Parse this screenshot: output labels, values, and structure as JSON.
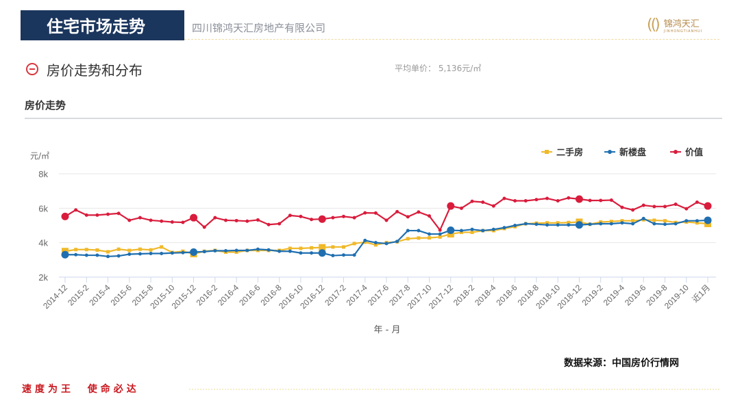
{
  "header": {
    "title": "住宅市场走势",
    "company": "四川锦鸿天汇房地产有限公司",
    "logo_cn": "锦鸿天汇",
    "logo_en": "JINHONGTIANHUI"
  },
  "section": {
    "title": "房价走势和分布",
    "avg_label": "平均单价：",
    "avg_value": "5,136元/㎡",
    "sub_title": "房价走势"
  },
  "footer": {
    "source": "数据来源：中国房价行情网",
    "slogan": "速度为王  使命必达"
  },
  "colors": {
    "second_hand": "#f0b92a",
    "new_home": "#1f6fb0",
    "value": "#d91c3c",
    "navy": "#1b365d"
  },
  "chart_data": {
    "type": "line",
    "ylabel": "元/㎡",
    "xlabel": "年 - 月",
    "ylim": [
      2000,
      8000
    ],
    "yticks": [
      {
        "v": 2000,
        "label": "2k"
      },
      {
        "v": 4000,
        "label": "4k"
      },
      {
        "v": 6000,
        "label": "6k"
      },
      {
        "v": 8000,
        "label": "8k"
      }
    ],
    "x": [
      "2014-12",
      "2015-1",
      "2015-2",
      "2015-3",
      "2015-4",
      "2015-5",
      "2015-6",
      "2015-7",
      "2015-8",
      "2015-9",
      "2015-10",
      "2015-11",
      "2015-12",
      "2016-1",
      "2016-2",
      "2016-3",
      "2016-4",
      "2016-5",
      "2016-6",
      "2016-7",
      "2016-8",
      "2016-9",
      "2016-10",
      "2016-11",
      "2016-12",
      "2017-1",
      "2017-2",
      "2017-3",
      "2017-4",
      "2017-5",
      "2017-6",
      "2017-7",
      "2017-8",
      "2017-9",
      "2017-10",
      "2017-11",
      "2017-12",
      "2018-1",
      "2018-2",
      "2018-3",
      "2018-4",
      "2018-5",
      "2018-6",
      "2018-7",
      "2018-8",
      "2018-9",
      "2018-10",
      "2018-11",
      "2018-12",
      "2019-1",
      "2019-2",
      "2019-3",
      "2019-4",
      "2019-5",
      "2019-6",
      "2019-7",
      "2019-8",
      "2019-9",
      "2019-10",
      "2019-11",
      "近1月"
    ],
    "grid": true,
    "legend": "top-right",
    "series": [
      {
        "name": "二手房",
        "color": "#f0b92a",
        "values": [
          3500,
          3600,
          3600,
          3570,
          3470,
          3620,
          3550,
          3620,
          3580,
          3750,
          3430,
          3500,
          3350,
          3500,
          3550,
          3450,
          3450,
          3550,
          3550,
          3550,
          3550,
          3670,
          3670,
          3700,
          3720,
          3750,
          3750,
          3950,
          4030,
          3870,
          4000,
          4050,
          4230,
          4270,
          4280,
          4330,
          4500,
          4600,
          4600,
          4700,
          4700,
          4820,
          4930,
          5100,
          5130,
          5150,
          5150,
          5170,
          5200,
          5070,
          5200,
          5230,
          5270,
          5270,
          5330,
          5300,
          5270,
          5170,
          5200,
          5150,
          5100
        ]
      },
      {
        "name": "新楼盘",
        "color": "#1f6fb0",
        "values": [
          3300,
          3300,
          3270,
          3270,
          3200,
          3230,
          3330,
          3350,
          3370,
          3370,
          3400,
          3420,
          3450,
          3480,
          3530,
          3530,
          3550,
          3550,
          3620,
          3580,
          3500,
          3500,
          3400,
          3400,
          3400,
          3250,
          3280,
          3280,
          4130,
          4000,
          3950,
          4070,
          4700,
          4700,
          4500,
          4500,
          4720,
          4700,
          4770,
          4700,
          4770,
          4870,
          5000,
          5100,
          5070,
          5030,
          5030,
          5030,
          5030,
          5070,
          5100,
          5100,
          5150,
          5100,
          5400,
          5100,
          5070,
          5100,
          5270,
          5270,
          5300
        ]
      },
      {
        "name": "价值",
        "color": "#d91c3c",
        "values": [
          5520,
          5900,
          5600,
          5600,
          5650,
          5700,
          5300,
          5450,
          5300,
          5250,
          5200,
          5180,
          5450,
          4900,
          5450,
          5300,
          5280,
          5250,
          5320,
          5050,
          5100,
          5580,
          5520,
          5350,
          5370,
          5450,
          5520,
          5450,
          5730,
          5720,
          5300,
          5800,
          5500,
          5780,
          5550,
          4730,
          6130,
          6000,
          6400,
          6350,
          6130,
          6570,
          6430,
          6430,
          6500,
          6570,
          6430,
          6600,
          6530,
          6450,
          6450,
          6470,
          6050,
          5900,
          6170,
          6100,
          6100,
          6230,
          5970,
          6350,
          6130
        ]
      }
    ]
  }
}
